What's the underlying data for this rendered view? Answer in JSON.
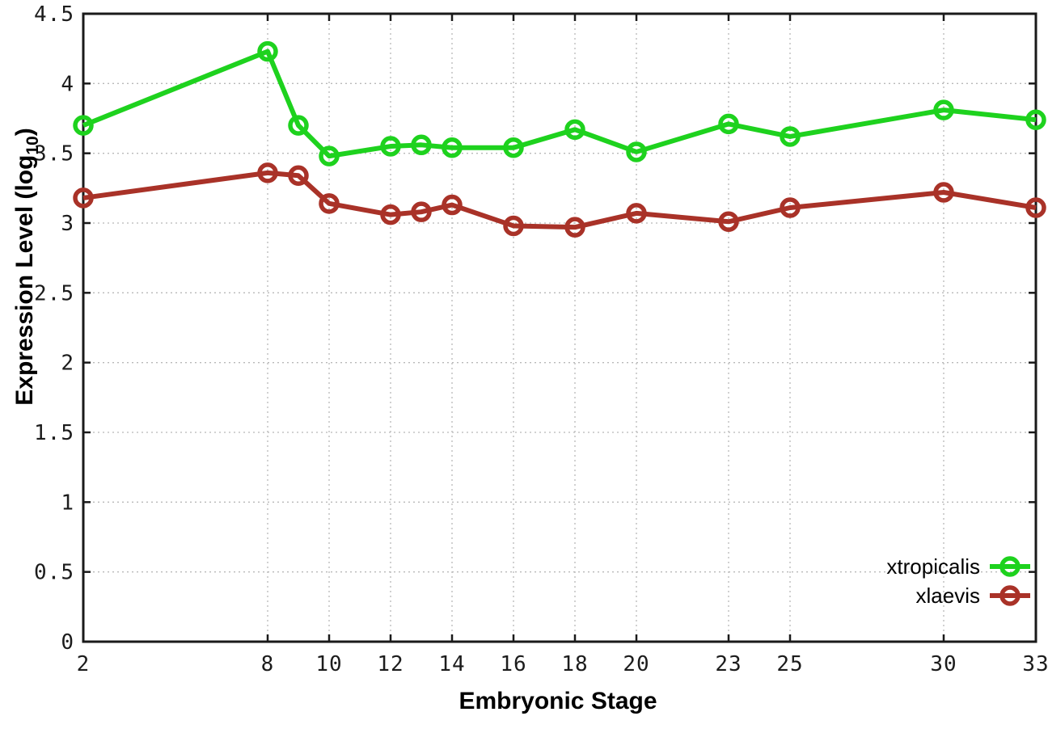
{
  "figure": {
    "ylabel_main": "Expression Level (log",
    "ylabel_sub": "10",
    "ylabel_close": ")"
  },
  "chart_data": {
    "type": "line",
    "title": "",
    "xlabel": "Embryonic Stage",
    "ylabel": "Expression Level (log10)",
    "x": [
      2,
      8,
      9,
      10,
      12,
      13,
      14,
      16,
      18,
      20,
      23,
      25,
      30,
      33
    ],
    "series": [
      {
        "name": "xtropicalis",
        "color": "#1ed21e",
        "values": [
          3.7,
          4.23,
          3.7,
          3.48,
          3.55,
          3.56,
          3.54,
          3.54,
          3.67,
          3.51,
          3.71,
          3.62,
          3.81,
          3.74
        ]
      },
      {
        "name": "xlaevis",
        "color": "#a93228",
        "values": [
          3.18,
          3.36,
          3.34,
          3.14,
          3.06,
          3.08,
          3.13,
          2.98,
          2.97,
          3.07,
          3.01,
          3.11,
          3.22,
          3.11
        ]
      }
    ],
    "xlim": [
      2,
      33
    ],
    "ylim": [
      0,
      4.5
    ],
    "xticks": [
      2,
      8,
      10,
      12,
      14,
      16,
      18,
      20,
      23,
      25,
      30,
      33
    ],
    "yticks": [
      0,
      0.5,
      1,
      1.5,
      2,
      2.5,
      3,
      3.5,
      4,
      4.5
    ],
    "grid": true,
    "grid_style": "dotted",
    "grid_color": "#b8b8b8",
    "border_color": "#1a1a1a",
    "legend_position": "bottom-right",
    "marker": "open-circle"
  }
}
